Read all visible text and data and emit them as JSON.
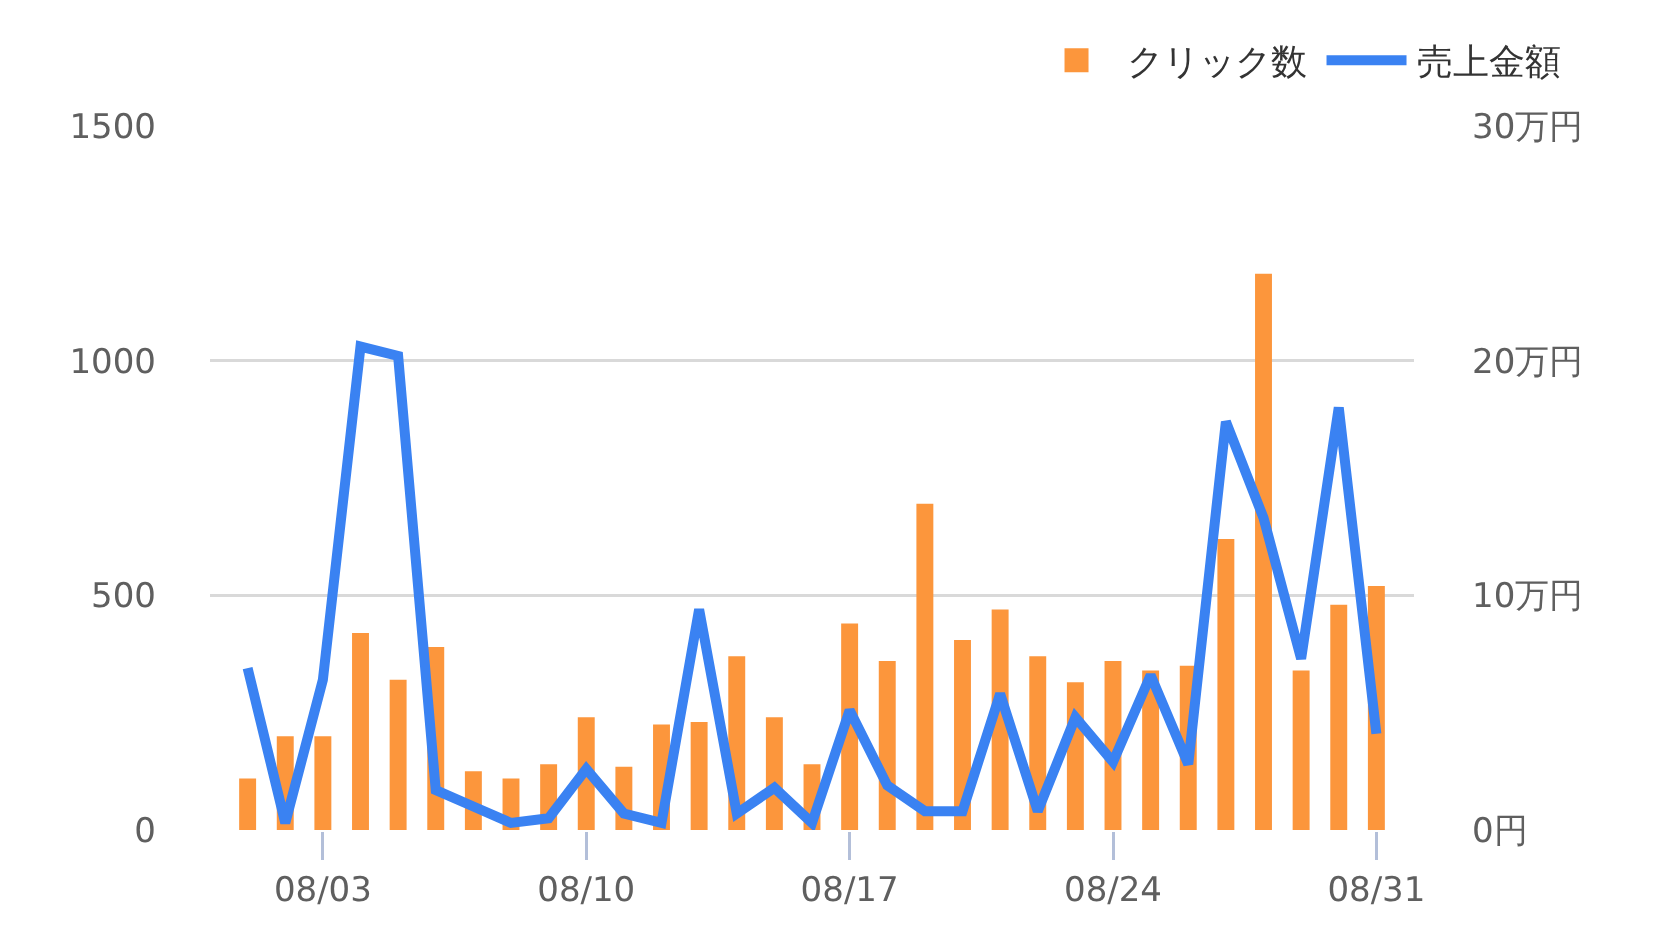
{
  "chart_data": {
    "type": "bar",
    "x": [
      "--08-01",
      "--08-02",
      "--08-03",
      "--08-04",
      "--08-05",
      "--08-06",
      "--08-07",
      "--08-08",
      "--08-09",
      "--08-10",
      "--08-11",
      "--08-12",
      "--08-13",
      "--08-14",
      "--08-15",
      "--08-16",
      "--08-17",
      "--08-18",
      "--08-19",
      "--08-20",
      "--08-21",
      "--08-22",
      "--08-23",
      "--08-24",
      "--08-25",
      "--08-26",
      "--08-27",
      "--08-28",
      "--08-29",
      "--08-30",
      "--08-31"
    ],
    "series": [
      {
        "name": "クリック数",
        "color": "#fc963c",
        "values": [
          110,
          200,
          200,
          420,
          320,
          390,
          125,
          110,
          140,
          240,
          135,
          225,
          230,
          370,
          240,
          140,
          440,
          360,
          695,
          405,
          470,
          370,
          315,
          360,
          340,
          350,
          620,
          1185,
          340,
          480,
          520
        ]
      },
      {
        "name": "売上金額",
        "type": "line",
        "axis": "y2",
        "color": "#3a82f2",
        "values": [
          6.9,
          0.3,
          6.4,
          20.6,
          20.2,
          1.7,
          1.0,
          0.3,
          0.5,
          2.6,
          0.7,
          0.3,
          9.4,
          0.7,
          1.8,
          0.3,
          5.1,
          1.9,
          0.8,
          0.8,
          5.8,
          0.8,
          4.8,
          2.9,
          6.6,
          2.8,
          17.4,
          13.3,
          7.3,
          18.0,
          4.1
        ]
      }
    ],
    "xlim": [
      "--07-31",
      "--09-01"
    ],
    "xticks": [
      {
        "value": "--08-03",
        "label": "08/03"
      },
      {
        "value": "--08-10",
        "label": "08/10"
      },
      {
        "value": "--08-17",
        "label": "08/17"
      },
      {
        "value": "--08-24",
        "label": "08/24"
      },
      {
        "value": "--08-31",
        "label": "08/31"
      }
    ],
    "ylim": [
      0,
      1500
    ],
    "yticks": [
      0,
      500,
      1000,
      1500
    ],
    "y2lim": [
      0,
      30
    ],
    "y2ticks": [
      {
        "value": 0,
        "label": "0円"
      },
      {
        "value": 10,
        "label": "10万円"
      },
      {
        "value": 20,
        "label": "20万円"
      },
      {
        "value": 30,
        "label": "30万円"
      }
    ],
    "grid": "y",
    "legend": "top right"
  }
}
